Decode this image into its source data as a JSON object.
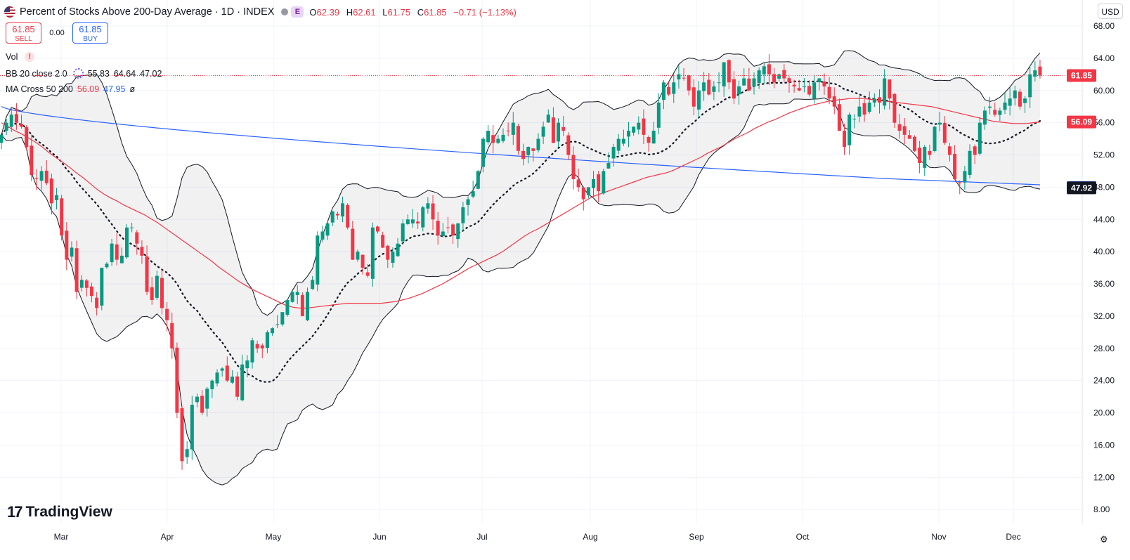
{
  "header": {
    "title": "Percent of Stocks Above 200-Day Average · 1D · INDEX",
    "badge": "E",
    "open_label": "O",
    "open": "62.39",
    "high_label": "H",
    "high": "62.61",
    "low_label": "L",
    "low": "61.75",
    "close_label": "C",
    "close": "61.85",
    "change": "−0.71 (−1.13%)"
  },
  "trade": {
    "sell_price": "61.85",
    "sell_label": "SELL",
    "spread": "0.00",
    "buy_price": "61.85",
    "buy_label": "BUY"
  },
  "indicators": {
    "vol_label": "Vol",
    "bb_label": "BB 20 close 2 0",
    "bb_basis": "55.83",
    "bb_upper": "64.64",
    "bb_lower": "47.02",
    "ma_label": "MA Cross 50 200",
    "ma50": "56.09",
    "ma200": "47.95",
    "ma_extra": "ø"
  },
  "currency": "USD",
  "logo_text": "TradingView",
  "colors": {
    "up": "#089981",
    "down": "#f23645",
    "ma50": "#f23645",
    "ma200": "#2962ff",
    "band": "#131722"
  },
  "chart_data": {
    "type": "candlestick",
    "y_ticks": [
      "68.00",
      "64.00",
      "60.00",
      "56.00",
      "52.00",
      "48.00",
      "44.00",
      "40.00",
      "36.00",
      "32.00",
      "28.00",
      "24.00",
      "20.00",
      "16.00",
      "12.00",
      "8.00"
    ],
    "x_ticks": [
      "Mar",
      "Apr",
      "May",
      "Jun",
      "Jul",
      "Aug",
      "Sep",
      "Oct",
      "Nov",
      "Dec"
    ],
    "ylim": [
      5,
      70
    ],
    "price_labels": [
      {
        "text": "61.85",
        "value": 61.85,
        "color": "#f23645"
      },
      {
        "text": "56.09",
        "value": 56.09,
        "color": "#f23645"
      },
      {
        "text": "47.95",
        "value": 47.95,
        "color": "#2962ff"
      },
      {
        "text": "47.92",
        "value": 47.92,
        "color": "#131722"
      }
    ],
    "last_price": 61.85,
    "closes": [
      54.5,
      56,
      57,
      56,
      55.5,
      53,
      49.5,
      49,
      50,
      48.5,
      46,
      47,
      42,
      39,
      40.5,
      35,
      36.5,
      35.5,
      34.5,
      33,
      38,
      38.5,
      41,
      39,
      39.5,
      43,
      43,
      41,
      39.5,
      35,
      34,
      37,
      33,
      31.5,
      28,
      20,
      14,
      15.5,
      21,
      22,
      20,
      23,
      24,
      25,
      25.5,
      24,
      24.5,
      22,
      26,
      26.5,
      29,
      28,
      28,
      30,
      30.5,
      31,
      32.5,
      34,
      35,
      35,
      32,
      35,
      36.5,
      42,
      42.5,
      43.5,
      45,
      44.5,
      46,
      43,
      39,
      40,
      38,
      37,
      43,
      42.5,
      40.5,
      39,
      40,
      41,
      43.5,
      44,
      44,
      43.5,
      45.5,
      46,
      44,
      42,
      42.5,
      43,
      42,
      43.5,
      45.5,
      46.5,
      47.5,
      50,
      54,
      55,
      53.5,
      54,
      54.5,
      55,
      56,
      52.5,
      51.5,
      53,
      52.5,
      54,
      55.5,
      57,
      53.5,
      56,
      55,
      52,
      49,
      48,
      46.5,
      48,
      49,
      47.5,
      50,
      51,
      53,
      54,
      54,
      55,
      55.5,
      56,
      54.5,
      53.5,
      55,
      58.5,
      61,
      59.5,
      61,
      62,
      61.5,
      60,
      58,
      60,
      61,
      59.5,
      60.5,
      61,
      63.5,
      61,
      59,
      60.5,
      61.5,
      60,
      61.5,
      62.5,
      63,
      62,
      61,
      62,
      61.5,
      61,
      60.5,
      60,
      60.5,
      59.5,
      61,
      61.5,
      60.5,
      59,
      58,
      55,
      53,
      57,
      56.5,
      58,
      57,
      58.5,
      59,
      58.5,
      61.5,
      59,
      56,
      55,
      54.5,
      54,
      52.5,
      51,
      53,
      52,
      55.5,
      56,
      53.5,
      52,
      49,
      48.5,
      50,
      52.5,
      52,
      56,
      57.5,
      58,
      57,
      57.5,
      58.5,
      59,
      60,
      58,
      59,
      62,
      62.5,
      61.85
    ],
    "ma50": [
      56.0,
      55.5,
      55.0,
      54.6,
      54.1,
      53.6,
      53.0,
      52.3,
      51.7,
      51.1,
      50.5,
      49.8,
      49.2,
      48.5,
      47.8,
      47.2,
      46.7,
      46.3,
      45.8,
      45.4,
      45.0,
      44.6,
      44.1,
      43.6,
      43.0,
      42.4,
      41.8,
      41.2,
      40.6,
      40.0,
      39.4,
      38.8,
      38.1,
      37.5,
      36.9,
      36.3,
      35.8,
      35.3,
      34.9,
      34.5,
      34.1,
      33.7,
      33.3,
      33.1,
      33.0,
      33.0,
      33.1,
      33.2,
      33.3,
      33.4,
      33.5,
      33.6,
      33.6,
      33.6,
      33.6,
      33.6,
      33.6,
      33.7,
      33.8,
      34.0,
      34.2,
      34.5,
      34.8,
      35.2,
      35.6,
      36.0,
      36.5,
      37.0,
      37.5,
      38.0,
      38.4,
      38.8,
      39.2,
      39.6,
      40.1,
      40.7,
      41.3,
      41.9,
      42.4,
      42.8,
      43.3,
      43.8,
      44.3,
      44.8,
      45.3,
      45.8,
      46.3,
      46.8,
      47.1,
      47.4,
      47.7,
      48.0,
      48.3,
      48.6,
      48.9,
      49.2,
      49.4,
      49.6,
      49.8,
      50.1,
      50.5,
      50.9,
      51.3,
      51.7,
      52.2,
      52.6,
      53.0,
      53.5,
      54.0,
      54.4,
      54.8,
      55.3,
      55.7,
      56.1,
      56.4,
      56.8,
      57.2,
      57.5,
      57.8,
      58.1,
      58.3,
      58.5,
      58.7,
      58.8,
      58.9,
      59.0,
      59.0,
      59.0,
      58.9,
      58.8,
      58.7,
      58.6,
      58.5,
      58.4,
      58.3,
      58.2,
      58.1,
      58.0,
      57.8,
      57.6,
      57.4,
      57.2,
      57.0,
      56.8,
      56.6,
      56.4,
      56.2,
      56.1,
      56.0,
      55.9,
      55.9,
      55.9,
      56.0,
      56.09
    ]
  }
}
